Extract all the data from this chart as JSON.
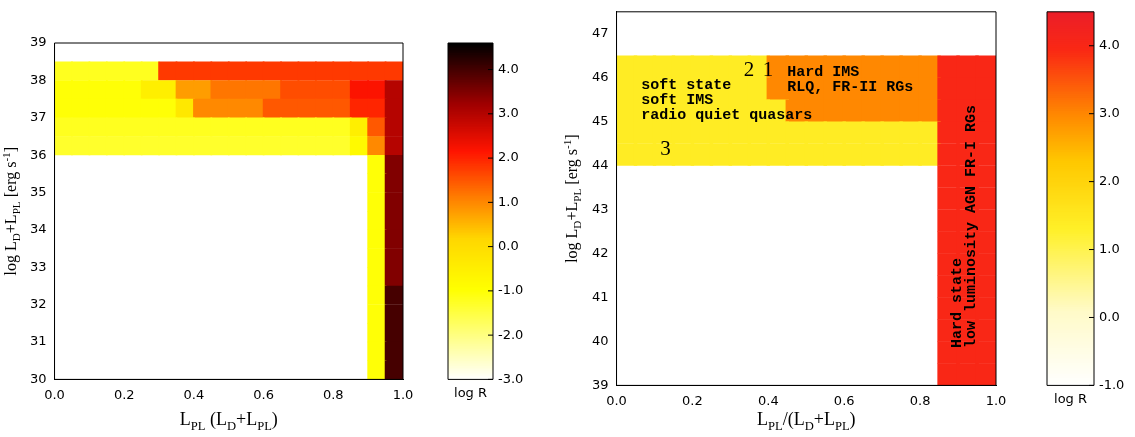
{
  "chart_data": [
    {
      "type": "scatter",
      "marker": "square",
      "xlabel": "L$_{PL}$ (L$_{D}$+L$_{PL}$)",
      "ylabel": "log L$_{D}$+L$_{PL}$ [erg s$^{-1}$]",
      "clabel": "log R",
      "xlim": [
        0,
        1
      ],
      "xticks": [
        {
          "value": 0,
          "label": "0.0"
        },
        {
          "value": 0.2,
          "label": "0.2"
        },
        {
          "value": 0.4,
          "label": "0.4"
        },
        {
          "value": 0.6,
          "label": "0.6"
        },
        {
          "value": 0.8,
          "label": "0.8"
        },
        {
          "value": 1,
          "label": "1.0"
        }
      ],
      "ylim": [
        30,
        39
      ],
      "yticks": [
        30,
        31,
        32,
        33,
        34,
        35,
        36,
        37,
        38,
        39
      ],
      "clim": [
        -3,
        4.6
      ],
      "cticks": [
        {
          "value": -3,
          "label": "-3.0"
        },
        {
          "value": -2,
          "label": "-2.0"
        },
        {
          "value": -1,
          "label": "-1.0"
        },
        {
          "value": 0,
          "label": "0.0"
        },
        {
          "value": 1,
          "label": "1.0"
        },
        {
          "value": 2,
          "label": "2.0"
        },
        {
          "value": 3,
          "label": "3.0"
        },
        {
          "value": 4,
          "label": "4.0"
        }
      ],
      "x": [
        0.025,
        0.075,
        0.125,
        0.175,
        0.225,
        0.275,
        0.325,
        0.375,
        0.425,
        0.475,
        0.525,
        0.575,
        0.625,
        0.675,
        0.725,
        0.775,
        0.825,
        0.875,
        0.925,
        0.975,
        0.025,
        0.075,
        0.125,
        0.175,
        0.225,
        0.275,
        0.325,
        0.375,
        0.425,
        0.475,
        0.525,
        0.575,
        0.625,
        0.675,
        0.725,
        0.775,
        0.825,
        0.875,
        0.925,
        0.975,
        0.025,
        0.075,
        0.125,
        0.175,
        0.225,
        0.275,
        0.325,
        0.375,
        0.425,
        0.475,
        0.525,
        0.575,
        0.625,
        0.675,
        0.725,
        0.775,
        0.825,
        0.875,
        0.925,
        0.975,
        0.025,
        0.075,
        0.125,
        0.175,
        0.225,
        0.275,
        0.325,
        0.375,
        0.425,
        0.475,
        0.525,
        0.575,
        0.625,
        0.675,
        0.725,
        0.775,
        0.825,
        0.875,
        0.925,
        0.975,
        0.025,
        0.075,
        0.125,
        0.175,
        0.225,
        0.275,
        0.325,
        0.375,
        0.425,
        0.475,
        0.525,
        0.575,
        0.625,
        0.675,
        0.725,
        0.775,
        0.825,
        0.875,
        0.925,
        0.975,
        0.925,
        0.975,
        0.925,
        0.975,
        0.925,
        0.975,
        0.925,
        0.975,
        0.925,
        0.975,
        0.925,
        0.975,
        0.925,
        0.975,
        0.925,
        0.975,
        0.925,
        0.975,
        0.925,
        0.975,
        0.925,
        0.975,
        0.925,
        0.975
      ],
      "values": [
        38.25,
        38.25,
        38.25,
        38.25,
        38.25,
        38.25,
        38.25,
        38.25,
        38.25,
        38.25,
        38.25,
        38.25,
        38.25,
        38.25,
        38.25,
        38.25,
        38.25,
        38.25,
        38.25,
        38.25,
        37.75,
        37.75,
        37.75,
        37.75,
        37.75,
        37.75,
        37.75,
        37.75,
        37.75,
        37.75,
        37.75,
        37.75,
        37.75,
        37.75,
        37.75,
        37.75,
        37.75,
        37.75,
        37.75,
        37.75,
        37.25,
        37.25,
        37.25,
        37.25,
        37.25,
        37.25,
        37.25,
        37.25,
        37.25,
        37.25,
        37.25,
        37.25,
        37.25,
        37.25,
        37.25,
        37.25,
        37.25,
        37.25,
        37.25,
        37.25,
        36.75,
        36.75,
        36.75,
        36.75,
        36.75,
        36.75,
        36.75,
        36.75,
        36.75,
        36.75,
        36.75,
        36.75,
        36.75,
        36.75,
        36.75,
        36.75,
        36.75,
        36.75,
        36.75,
        36.75,
        36.25,
        36.25,
        36.25,
        36.25,
        36.25,
        36.25,
        36.25,
        36.25,
        36.25,
        36.25,
        36.25,
        36.25,
        36.25,
        36.25,
        36.25,
        36.25,
        36.25,
        36.25,
        36.25,
        36.25,
        35.75,
        35.75,
        35.25,
        35.25,
        34.75,
        34.75,
        34.25,
        34.25,
        33.75,
        33.75,
        33.25,
        33.25,
        32.75,
        32.75,
        32.25,
        32.25,
        31.75,
        31.75,
        31.25,
        31.25,
        30.75,
        30.75,
        30.25,
        30.25
      ],
      "cvalues": [
        -1.2,
        -1.2,
        -1.2,
        -1.2,
        -1.2,
        -1.2,
        1.8,
        1.8,
        1.8,
        1.8,
        1.8,
        1.8,
        1.8,
        1.8,
        1.8,
        1.8,
        1.8,
        1.8,
        1.8,
        1.8,
        -1,
        -1,
        -1,
        -1,
        -1,
        -0.5,
        -0.5,
        0.8,
        0.8,
        1.2,
        1.2,
        1.2,
        1.2,
        1.6,
        1.6,
        1.6,
        1.6,
        2.2,
        2.2,
        3,
        -1,
        -1,
        -1,
        -1,
        -1,
        -1,
        -1,
        -0.3,
        1,
        1,
        1,
        1,
        1.5,
        1.5,
        1.5,
        1.5,
        1.5,
        2,
        2,
        3,
        -1.2,
        -1.2,
        -1.2,
        -1.2,
        -1.2,
        -1.2,
        -1.2,
        -1.2,
        -1.2,
        -1.2,
        -1.2,
        -1.2,
        -1.2,
        -1.2,
        -1.2,
        -1.2,
        -1.2,
        -0.5,
        1.5,
        3,
        -1.3,
        -1.3,
        -1.3,
        -1.3,
        -1.3,
        -1.3,
        -1.3,
        -1.3,
        -1.3,
        -1.3,
        -1.3,
        -1.3,
        -1.3,
        -1.3,
        -1.3,
        -1.3,
        -1.3,
        -0.8,
        1,
        3,
        -1,
        3.5,
        -1,
        3.5,
        -1,
        3.5,
        -1,
        3.5,
        -1,
        3.5,
        -1,
        3.5,
        -1,
        3.5,
        -1,
        4,
        -1,
        4,
        -1,
        4,
        -1,
        4,
        -1,
        4
      ]
    },
    {
      "type": "scatter",
      "marker": "square",
      "xlabel": "L$_{PL}$/(L$_{D}$+L$_{PL}$)",
      "ylabel": "log L$_{D}$+L$_{PL}$ [erg s$^{-1}$]",
      "clabel": "log R",
      "xlim": [
        0,
        1
      ],
      "xticks": [
        {
          "value": 0,
          "label": "0.0"
        },
        {
          "value": 0.2,
          "label": "0.2"
        },
        {
          "value": 0.4,
          "label": "0.4"
        },
        {
          "value": 0.6,
          "label": "0.6"
        },
        {
          "value": 0.8,
          "label": "0.8"
        },
        {
          "value": 1,
          "label": "1.0"
        }
      ],
      "ylim": [
        39,
        47.5
      ],
      "yticks": [
        39,
        40,
        41,
        42,
        43,
        44,
        45,
        46,
        47
      ],
      "clim": [
        -1,
        4.5
      ],
      "cticks": [
        {
          "value": -1,
          "label": "-1.0"
        },
        {
          "value": 0,
          "label": "0.0"
        },
        {
          "value": 1,
          "label": "1.0"
        },
        {
          "value": 2,
          "label": "2.0"
        },
        {
          "value": 3,
          "label": "3.0"
        },
        {
          "value": 4,
          "label": "4.0"
        }
      ],
      "x": [
        0.025,
        0.075,
        0.125,
        0.175,
        0.225,
        0.275,
        0.325,
        0.375,
        0.425,
        0.475,
        0.525,
        0.575,
        0.625,
        0.675,
        0.725,
        0.775,
        0.825,
        0.875,
        0.925,
        0.975,
        0.025,
        0.075,
        0.125,
        0.175,
        0.225,
        0.275,
        0.325,
        0.375,
        0.425,
        0.475,
        0.525,
        0.575,
        0.625,
        0.675,
        0.725,
        0.775,
        0.825,
        0.875,
        0.925,
        0.975,
        0.025,
        0.075,
        0.125,
        0.175,
        0.225,
        0.275,
        0.325,
        0.375,
        0.425,
        0.475,
        0.525,
        0.575,
        0.625,
        0.675,
        0.725,
        0.775,
        0.825,
        0.875,
        0.925,
        0.975,
        0.025,
        0.075,
        0.125,
        0.175,
        0.225,
        0.275,
        0.325,
        0.375,
        0.425,
        0.475,
        0.525,
        0.575,
        0.625,
        0.675,
        0.725,
        0.775,
        0.825,
        0.875,
        0.925,
        0.975,
        0.025,
        0.075,
        0.125,
        0.175,
        0.225,
        0.275,
        0.325,
        0.375,
        0.425,
        0.475,
        0.525,
        0.575,
        0.625,
        0.675,
        0.725,
        0.775,
        0.825,
        0.875,
        0.925,
        0.975,
        0.875,
        0.925,
        0.975,
        0.875,
        0.925,
        0.975,
        0.875,
        0.925,
        0.975,
        0.875,
        0.925,
        0.975,
        0.875,
        0.925,
        0.975,
        0.875,
        0.925,
        0.975,
        0.875,
        0.925,
        0.975,
        0.875,
        0.925,
        0.975,
        0.875,
        0.925,
        0.975,
        0.875,
        0.925,
        0.975
      ],
      "values": [
        46.25,
        46.25,
        46.25,
        46.25,
        46.25,
        46.25,
        46.25,
        46.25,
        46.25,
        46.25,
        46.25,
        46.25,
        46.25,
        46.25,
        46.25,
        46.25,
        46.25,
        46.25,
        46.25,
        46.25,
        45.75,
        45.75,
        45.75,
        45.75,
        45.75,
        45.75,
        45.75,
        45.75,
        45.75,
        45.75,
        45.75,
        45.75,
        45.75,
        45.75,
        45.75,
        45.75,
        45.75,
        45.75,
        45.75,
        45.75,
        45.25,
        45.25,
        45.25,
        45.25,
        45.25,
        45.25,
        45.25,
        45.25,
        45.25,
        45.25,
        45.25,
        45.25,
        45.25,
        45.25,
        45.25,
        45.25,
        45.25,
        45.25,
        45.25,
        45.25,
        44.75,
        44.75,
        44.75,
        44.75,
        44.75,
        44.75,
        44.75,
        44.75,
        44.75,
        44.75,
        44.75,
        44.75,
        44.75,
        44.75,
        44.75,
        44.75,
        44.75,
        44.75,
        44.75,
        44.75,
        44.25,
        44.25,
        44.25,
        44.25,
        44.25,
        44.25,
        44.25,
        44.25,
        44.25,
        44.25,
        44.25,
        44.25,
        44.25,
        44.25,
        44.25,
        44.25,
        44.25,
        44.25,
        44.25,
        44.25,
        43.75,
        43.75,
        43.75,
        43.25,
        43.25,
        43.25,
        42.75,
        42.75,
        42.75,
        42.25,
        42.25,
        42.25,
        41.75,
        41.75,
        41.75,
        41.25,
        41.25,
        41.25,
        40.75,
        40.75,
        40.75,
        40.25,
        40.25,
        40.25,
        39.75,
        39.75,
        39.75,
        39.25,
        39.25,
        39.25
      ],
      "cvalues": [
        1.4,
        1.4,
        1.4,
        1.4,
        1.4,
        1.4,
        1.4,
        1.4,
        3,
        3,
        3,
        3,
        3,
        3,
        3,
        3,
        3,
        4,
        4,
        4,
        1.4,
        1.4,
        1.4,
        1.4,
        1.4,
        1.4,
        1.4,
        1.4,
        3,
        3,
        3,
        3,
        3,
        3,
        3,
        3,
        3,
        4,
        4,
        4,
        1.4,
        1.4,
        1.4,
        1.4,
        1.4,
        1.4,
        1.4,
        1.4,
        1.4,
        3,
        3,
        3,
        3,
        3,
        3,
        3,
        3,
        4,
        4,
        4,
        1.4,
        1.4,
        1.4,
        1.4,
        1.4,
        1.4,
        1.4,
        1.4,
        1.4,
        1.4,
        1.4,
        1.4,
        1.4,
        1.4,
        1.4,
        1.4,
        1.4,
        4,
        4,
        4,
        1.4,
        1.4,
        1.4,
        1.4,
        1.4,
        1.4,
        1.4,
        1.4,
        1.4,
        1.4,
        1.4,
        1.4,
        1.4,
        1.4,
        1.4,
        1.4,
        1.4,
        4,
        4,
        4,
        4,
        4,
        4,
        4,
        4,
        4,
        4,
        4,
        4,
        4,
        4,
        4,
        4,
        4,
        4,
        4,
        4,
        4,
        4,
        4,
        4,
        4,
        4,
        4,
        4,
        4,
        4,
        4,
        4,
        4
      ],
      "annotations": [
        {
          "text": "soft state",
          "x": 0.065,
          "y": 45.75
        },
        {
          "text": "soft IMS",
          "x": 0.065,
          "y": 45.4
        },
        {
          "text": "radio quiet quasars",
          "x": 0.065,
          "y": 45.05
        },
        {
          "text": "Hard IMS",
          "x": 0.45,
          "y": 46.05
        },
        {
          "text": "RLQ, FR-II RGs",
          "x": 0.45,
          "y": 45.7
        },
        {
          "text": "2",
          "x": 0.335,
          "y": 46.05
        },
        {
          "text": "1",
          "x": 0.385,
          "y": 46.05
        },
        {
          "text": "3",
          "x": 0.115,
          "y": 44.25
        },
        {
          "text": "Hard state",
          "x": 0.895,
          "y": 39.85
        },
        {
          "text": "low luminosity AGN FR-I RGs",
          "x": 0.93,
          "y": 39.85
        }
      ]
    }
  ]
}
